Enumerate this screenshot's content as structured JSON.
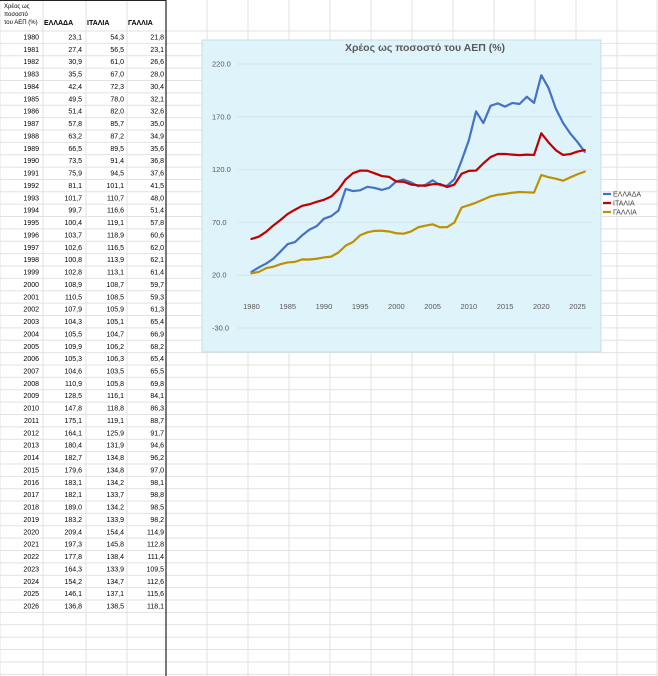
{
  "table": {
    "header_lines": [
      "Χρέος ως",
      "ποσοστό",
      "του ΑΕΠ (%)"
    ],
    "columns": [
      "ΕΛΛΑΔΑ",
      "ΙΤΑΛΙΑ",
      "ΓΑΛΛΙΑ"
    ],
    "rows": [
      [
        "1980",
        "23,1",
        "54,3",
        "21,8"
      ],
      [
        "1981",
        "27,4",
        "56,5",
        "23,1"
      ],
      [
        "1982",
        "30,9",
        "61,0",
        "26,6"
      ],
      [
        "1983",
        "35,5",
        "67,0",
        "28,0"
      ],
      [
        "1984",
        "42,4",
        "72,3",
        "30,4"
      ],
      [
        "1985",
        "49,5",
        "78,0",
        "32,1"
      ],
      [
        "1986",
        "51,4",
        "82,0",
        "32,6"
      ],
      [
        "1987",
        "57,8",
        "85,7",
        "35,0"
      ],
      [
        "1988",
        "63,2",
        "87,2",
        "34,9"
      ],
      [
        "1989",
        "66,5",
        "89,5",
        "35,6"
      ],
      [
        "1990",
        "73,5",
        "91,4",
        "36,8"
      ],
      [
        "1991",
        "75,9",
        "94,5",
        "37,6"
      ],
      [
        "1992",
        "81,1",
        "101,1",
        "41,5"
      ],
      [
        "1993",
        "101,7",
        "110,7",
        "48,0"
      ],
      [
        "1994",
        "99,7",
        "116,6",
        "51,4"
      ],
      [
        "1995",
        "100,4",
        "119,1",
        "57,8"
      ],
      [
        "1996",
        "103,7",
        "118,9",
        "60,6"
      ],
      [
        "1997",
        "102,6",
        "116,5",
        "62,0"
      ],
      [
        "1998",
        "100,8",
        "113,9",
        "62,1"
      ],
      [
        "1999",
        "102,8",
        "113,1",
        "61,4"
      ],
      [
        "2000",
        "108,9",
        "108,7",
        "59,7"
      ],
      [
        "2001",
        "110,5",
        "108,5",
        "59,3"
      ],
      [
        "2002",
        "107,9",
        "105,9",
        "61,3"
      ],
      [
        "2003",
        "104,3",
        "105,1",
        "65,4"
      ],
      [
        "2004",
        "105,5",
        "104,7",
        "66,9"
      ],
      [
        "2005",
        "109,9",
        "106,2",
        "68,2"
      ],
      [
        "2006",
        "105,3",
        "106,3",
        "65,4"
      ],
      [
        "2007",
        "104,6",
        "103,5",
        "65,5"
      ],
      [
        "2008",
        "110,9",
        "105,8",
        "69,8"
      ],
      [
        "2009",
        "128,5",
        "116,1",
        "84,1"
      ],
      [
        "2010",
        "147,8",
        "118,8",
        "86,3"
      ],
      [
        "2011",
        "175,1",
        "119,1",
        "88,7"
      ],
      [
        "2012",
        "164,1",
        "125,9",
        "91,7"
      ],
      [
        "2013",
        "180,4",
        "131,9",
        "94,6"
      ],
      [
        "2014",
        "182,7",
        "134,8",
        "96,2"
      ],
      [
        "2015",
        "179,6",
        "134,8",
        "97,0"
      ],
      [
        "2016",
        "183,1",
        "134,2",
        "98,1"
      ],
      [
        "2017",
        "182,1",
        "133,7",
        "98,8"
      ],
      [
        "2018",
        "189,0",
        "134,2",
        "98,5"
      ],
      [
        "2019",
        "183,2",
        "133,9",
        "98,2"
      ],
      [
        "2020",
        "209,4",
        "154,4",
        "114,9"
      ],
      [
        "2021",
        "197,3",
        "145,8",
        "112,8"
      ],
      [
        "2022",
        "177,8",
        "138,4",
        "111,4"
      ],
      [
        "2023",
        "164,3",
        "133,9",
        "109,5"
      ],
      [
        "2024",
        "154,2",
        "134,7",
        "112,6"
      ],
      [
        "2025",
        "146,1",
        "137,1",
        "115,6"
      ],
      [
        "2026",
        "136,8",
        "138,5",
        "118,1"
      ]
    ]
  },
  "chart_data": {
    "type": "line",
    "title": "Χρέος ως ποσοστό του ΑΕΠ (%)",
    "xlabel": "",
    "ylabel": "",
    "xlim": [
      1978,
      2027
    ],
    "ylim": [
      -30,
      220
    ],
    "x_ticks": [
      "1980",
      "1985",
      "1990",
      "1995",
      "2000",
      "2005",
      "2010",
      "2015",
      "2020",
      "2025"
    ],
    "y_ticks": [
      "220.0",
      "170.0",
      "120.0",
      "70.0",
      "20.0",
      "-30.0"
    ],
    "grid": true,
    "legend_position": "right",
    "x": [
      1980,
      1981,
      1982,
      1983,
      1984,
      1985,
      1986,
      1987,
      1988,
      1989,
      1990,
      1991,
      1992,
      1993,
      1994,
      1995,
      1996,
      1997,
      1998,
      1999,
      2000,
      2001,
      2002,
      2003,
      2004,
      2005,
      2006,
      2007,
      2008,
      2009,
      2010,
      2011,
      2012,
      2013,
      2014,
      2015,
      2016,
      2017,
      2018,
      2019,
      2020,
      2021,
      2022,
      2023,
      2024,
      2025,
      2026
    ],
    "series": [
      {
        "name": "ΕΛΛΑΔΑ",
        "color": "#4472C4",
        "values": [
          23.1,
          27.4,
          30.9,
          35.5,
          42.4,
          49.5,
          51.4,
          57.8,
          63.2,
          66.5,
          73.5,
          75.9,
          81.1,
          101.7,
          99.7,
          100.4,
          103.7,
          102.6,
          100.8,
          102.8,
          108.9,
          110.5,
          107.9,
          104.3,
          105.5,
          109.9,
          105.3,
          104.6,
          110.9,
          128.5,
          147.8,
          175.1,
          164.1,
          180.4,
          182.7,
          179.6,
          183.1,
          182.1,
          189.0,
          183.2,
          209.4,
          197.3,
          177.8,
          164.3,
          154.2,
          146.1,
          136.8
        ]
      },
      {
        "name": "ΙΤΑΛΙΑ",
        "color": "#C00000",
        "values": [
          54.3,
          56.5,
          61.0,
          67.0,
          72.3,
          78.0,
          82.0,
          85.7,
          87.2,
          89.5,
          91.4,
          94.5,
          101.1,
          110.7,
          116.6,
          119.1,
          118.9,
          116.5,
          113.9,
          113.1,
          108.7,
          108.5,
          105.9,
          105.1,
          104.7,
          106.2,
          106.3,
          103.5,
          105.8,
          116.1,
          118.8,
          119.1,
          125.9,
          131.9,
          134.8,
          134.8,
          134.2,
          133.7,
          134.2,
          133.9,
          154.4,
          145.8,
          138.4,
          133.9,
          134.7,
          137.1,
          138.5
        ]
      },
      {
        "name": "ΓΑΛΛΙΑ",
        "color": "#BF9000",
        "values": [
          21.8,
          23.1,
          26.6,
          28.0,
          30.4,
          32.1,
          32.6,
          35.0,
          34.9,
          35.6,
          36.8,
          37.6,
          41.5,
          48.0,
          51.4,
          57.8,
          60.6,
          62.0,
          62.1,
          61.4,
          59.7,
          59.3,
          61.3,
          65.4,
          66.9,
          68.2,
          65.4,
          65.5,
          69.8,
          84.1,
          86.3,
          88.7,
          91.7,
          94.6,
          96.2,
          97.0,
          98.1,
          98.8,
          98.5,
          98.2,
          114.9,
          112.8,
          111.4,
          109.5,
          112.6,
          115.6,
          118.1
        ]
      }
    ]
  }
}
